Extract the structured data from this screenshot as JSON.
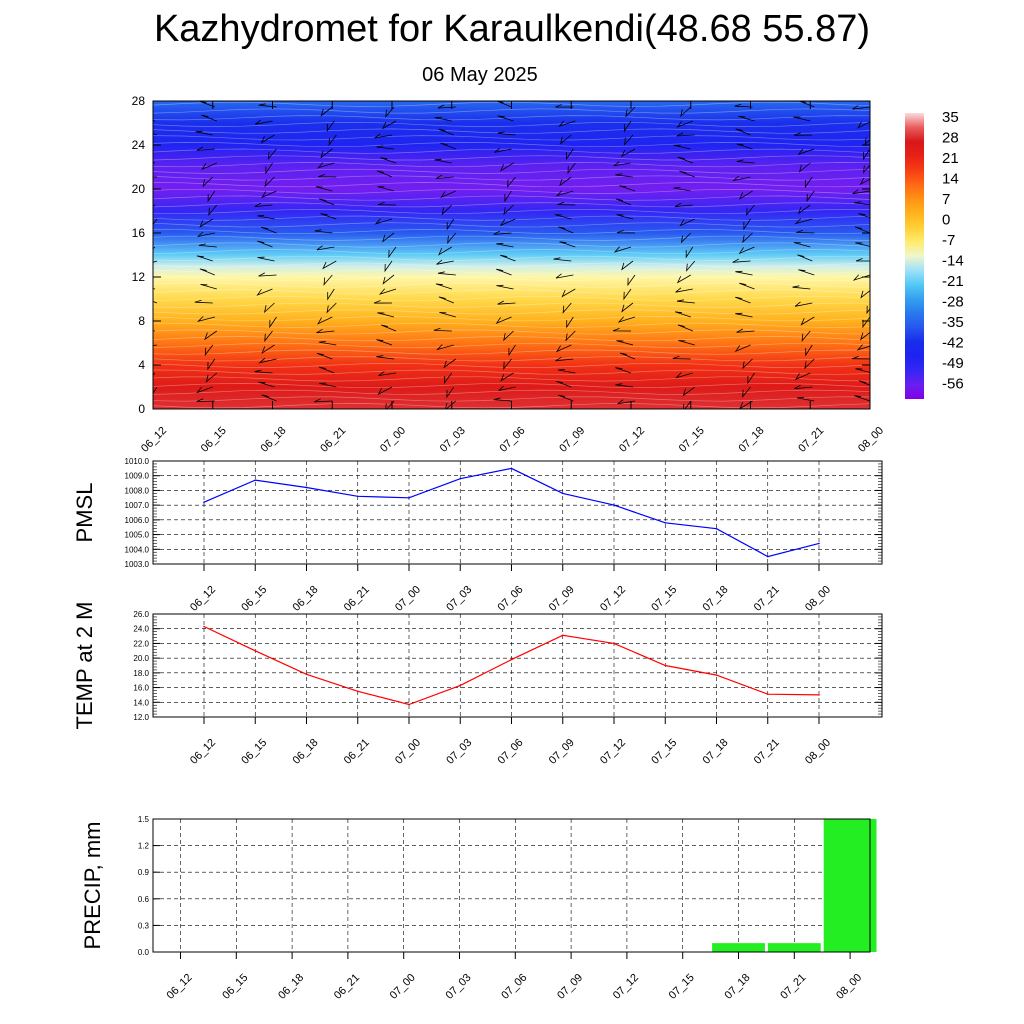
{
  "title": "Kazhydromet for Karaulkendi(48.68 55.87)",
  "subtitle": "06 May 2025",
  "time_labels": [
    "06_12",
    "06_15",
    "06_18",
    "06_21",
    "07_00",
    "07_03",
    "07_06",
    "07_09",
    "07_12",
    "07_15",
    "07_18",
    "07_21",
    "08_00"
  ],
  "colors": {
    "pmsl_line": "#0000ff",
    "temp_line": "#ff0000",
    "precip_bar": "#22ee22",
    "barb": "#000000"
  },
  "chart_data": [
    {
      "id": "cross_section",
      "type": "heatmap",
      "title": "",
      "xlabel": "",
      "ylabel": "",
      "ylim": [
        0,
        28
      ],
      "yticks": [
        0,
        4,
        8,
        12,
        16,
        20,
        24,
        28
      ],
      "x": [
        "06_12",
        "06_15",
        "06_18",
        "06_21",
        "07_00",
        "07_03",
        "07_06",
        "07_09",
        "07_12",
        "07_15",
        "07_18",
        "07_21",
        "08_00"
      ],
      "colorbar_labels": [
        "35",
        "28",
        "21",
        "14",
        "7",
        "0",
        "-7",
        "-14",
        "-21",
        "-28",
        "-35",
        "-42",
        "-49",
        "-56"
      ],
      "temperature_profile": {
        "heights": [
          0,
          2,
          4,
          6,
          8,
          10,
          12,
          13,
          14,
          16,
          18,
          20,
          22,
          24,
          26,
          28
        ],
        "values": [
          30,
          26,
          20,
          12,
          4,
          -3,
          -9,
          -13,
          -20,
          -35,
          -50,
          -56,
          -54,
          -46,
          -40,
          -33
        ]
      },
      "wind_barbs": "shown"
    },
    {
      "id": "pmsl",
      "type": "line",
      "ylabel": "PMSL",
      "ylim": [
        1003.0,
        1010.0
      ],
      "ytick_labels": [
        "1003.0",
        "1004.0",
        "1005.0",
        "1006.0",
        "1007.0",
        "1008.0",
        "1009.0",
        "1010.0"
      ],
      "categories": [
        "06_12",
        "06_15",
        "06_18",
        "06_21",
        "07_00",
        "07_03",
        "07_06",
        "07_09",
        "07_12",
        "07_15",
        "07_18",
        "07_21",
        "08_00"
      ],
      "values": [
        1007.2,
        1008.7,
        1008.2,
        1007.6,
        1007.5,
        1008.8,
        1009.5,
        1007.8,
        1007.0,
        1005.8,
        1005.4,
        1003.5,
        1004.4
      ],
      "grid": true
    },
    {
      "id": "temp2m",
      "type": "line",
      "ylabel": "TEMP at 2 M",
      "ylim": [
        12.0,
        26.0
      ],
      "ytick_labels": [
        "12.0",
        "14.0",
        "16.0",
        "18.0",
        "20.0",
        "22.0",
        "24.0",
        "26.0"
      ],
      "categories": [
        "06_12",
        "06_15",
        "06_18",
        "06_21",
        "07_00",
        "07_03",
        "07_06",
        "07_09",
        "07_12",
        "07_15",
        "07_18",
        "07_21",
        "08_00"
      ],
      "values": [
        24.3,
        21.0,
        17.8,
        15.5,
        13.7,
        16.3,
        19.8,
        23.1,
        22.0,
        19.0,
        17.7,
        15.1,
        15.0
      ],
      "grid": true
    },
    {
      "id": "precip",
      "type": "bar",
      "ylabel": "PRECIP, mm",
      "ylim": [
        0.0,
        1.5
      ],
      "ytick_labels": [
        "0.0",
        "0.3",
        "0.6",
        "0.9",
        "1.2",
        "1.5"
      ],
      "categories": [
        "06_12",
        "06_15",
        "06_18",
        "06_21",
        "07_00",
        "07_03",
        "07_06",
        "07_09",
        "07_12",
        "07_15",
        "07_18",
        "07_21",
        "08_00"
      ],
      "values": [
        0,
        0,
        0,
        0,
        0,
        0,
        0,
        0,
        0,
        0,
        0.1,
        0.1,
        1.5
      ],
      "grid": true
    }
  ]
}
